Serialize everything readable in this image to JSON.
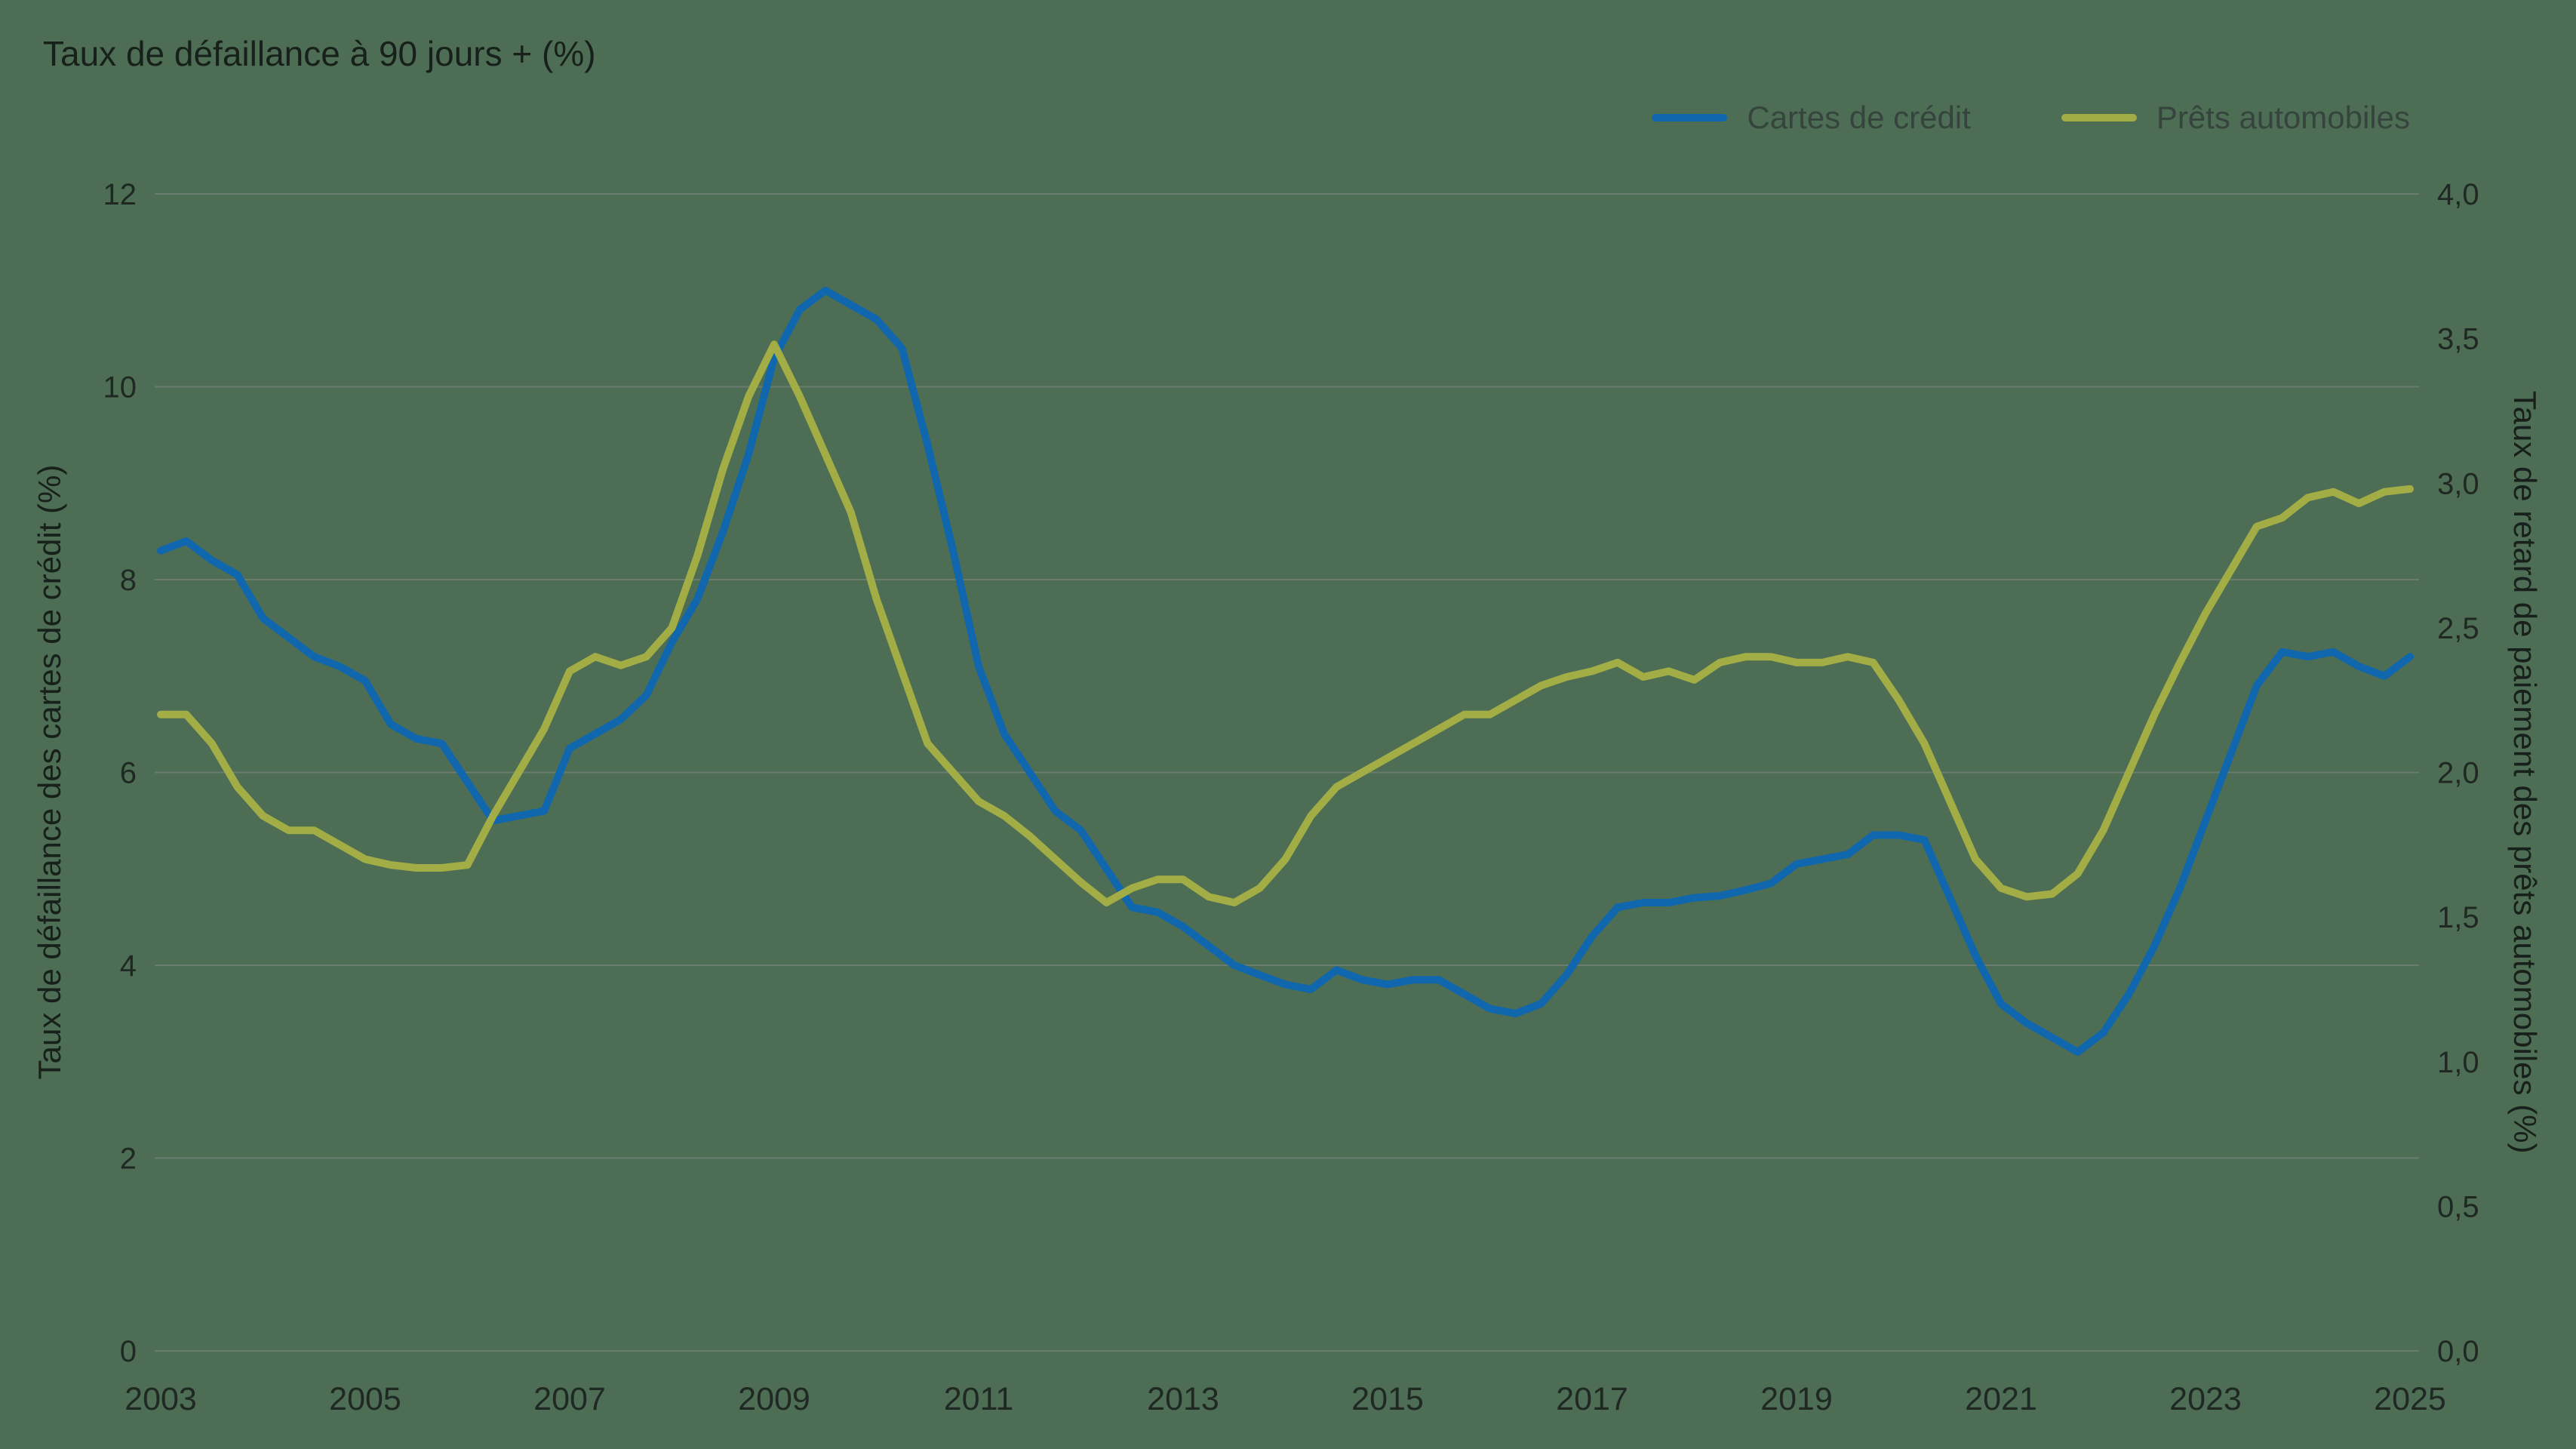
{
  "title": "Taux de défaillance à 90 jours + (%)",
  "left_axis_title": "Taux de défaillance des cartes de crédit (%)",
  "right_axis_title": "Taux de retard de paiement des prêts automobiles (%)",
  "colors": {
    "background": "#4d6e54",
    "gridline": "#6b7c6f",
    "credit_cards_line": "#1067ad",
    "auto_loans_line": "#a3ad45",
    "text": "#1f2823"
  },
  "chart_data": {
    "type": "line",
    "x_start": 2003,
    "x_step": 0.25,
    "x_range": [
      2003,
      2025
    ],
    "x_tick_labels": [
      "2003",
      "2005",
      "2007",
      "2009",
      "2011",
      "2013",
      "2015",
      "2017",
      "2019",
      "2021",
      "2023",
      "2025"
    ],
    "left_axis": {
      "range": [
        0,
        12
      ],
      "ticks": [
        0,
        2,
        4,
        6,
        8,
        10,
        12
      ],
      "labels": [
        "0",
        "2",
        "4",
        "6",
        "8",
        "10",
        "12"
      ]
    },
    "right_axis": {
      "range": [
        0,
        4
      ],
      "ticks": [
        0,
        0.5,
        1,
        1.5,
        2,
        2.5,
        3,
        3.5,
        4
      ],
      "labels": [
        "0,0",
        "0,5",
        "1,0",
        "1,5",
        "2,0",
        "2,5",
        "3,0",
        "3,5",
        "4,0"
      ]
    },
    "grid": "horizontal",
    "legend_position": "top-right",
    "series": [
      {
        "name": "Cartes de crédit",
        "axis": "left",
        "color": "#1067ad",
        "values": [
          8.3,
          8.4,
          8.2,
          8.05,
          7.6,
          7.4,
          7.2,
          7.1,
          6.95,
          6.5,
          6.35,
          6.3,
          5.9,
          5.5,
          5.55,
          5.6,
          6.25,
          6.4,
          6.55,
          6.8,
          7.35,
          7.8,
          8.5,
          9.3,
          10.3,
          10.8,
          11.0,
          10.85,
          10.7,
          10.4,
          9.4,
          8.3,
          7.1,
          6.4,
          6.0,
          5.6,
          5.4,
          5.0,
          4.6,
          4.55,
          4.4,
          4.2,
          4.0,
          3.9,
          3.8,
          3.75,
          3.95,
          3.85,
          3.8,
          3.85,
          3.85,
          3.7,
          3.55,
          3.5,
          3.6,
          3.9,
          4.3,
          4.6,
          4.65,
          4.65,
          4.7,
          4.72,
          4.78,
          4.85,
          5.05,
          5.1,
          5.15,
          5.35,
          5.35,
          5.3,
          4.7,
          4.1,
          3.6,
          3.4,
          3.25,
          3.1,
          3.3,
          3.7,
          4.2,
          4.8,
          5.5,
          6.2,
          6.9,
          7.25,
          7.2,
          7.25,
          7.1,
          7.0,
          7.2
        ]
      },
      {
        "name": "Prêts automobiles",
        "axis": "right",
        "color": "#a3ad45",
        "values": [
          2.2,
          2.2,
          2.1,
          1.95,
          1.85,
          1.8,
          1.8,
          1.75,
          1.7,
          1.68,
          1.67,
          1.67,
          1.68,
          1.85,
          2.0,
          2.15,
          2.35,
          2.4,
          2.37,
          2.4,
          2.5,
          2.75,
          3.05,
          3.3,
          3.48,
          3.3,
          3.1,
          2.9,
          2.6,
          2.35,
          2.1,
          2.0,
          1.9,
          1.85,
          1.78,
          1.7,
          1.62,
          1.55,
          1.6,
          1.63,
          1.63,
          1.57,
          1.55,
          1.6,
          1.7,
          1.85,
          1.95,
          2.0,
          2.05,
          2.1,
          2.15,
          2.2,
          2.2,
          2.25,
          2.3,
          2.33,
          2.35,
          2.38,
          2.33,
          2.35,
          2.32,
          2.38,
          2.4,
          2.4,
          2.38,
          2.38,
          2.4,
          2.38,
          2.25,
          2.1,
          1.9,
          1.7,
          1.6,
          1.57,
          1.58,
          1.65,
          1.8,
          2.0,
          2.2,
          2.38,
          2.55,
          2.7,
          2.85,
          2.88,
          2.95,
          2.97,
          2.93,
          2.97,
          2.98
        ]
      }
    ]
  }
}
